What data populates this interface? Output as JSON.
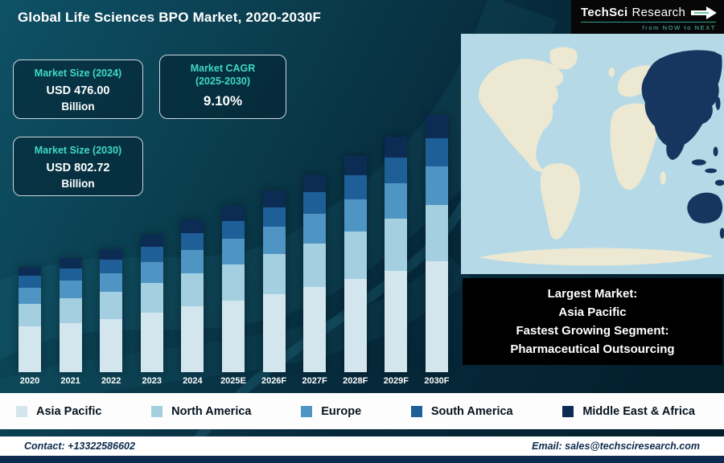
{
  "header": {
    "title": "Global Life Sciences BPO Market, 2020-2030F",
    "logo": {
      "name_part1": "TechSci",
      "name_part2": "Research",
      "tagline": "from NOW to NEXT"
    }
  },
  "stats": [
    {
      "label": "Market Size (2024)",
      "value": "USD 476.00",
      "unit": "Billion"
    },
    {
      "label": "Market CAGR",
      "sublabel": "(2025-2030)",
      "value": "9.10%"
    },
    {
      "label": "Market Size (2030)",
      "value": "USD 802.72",
      "unit": "Billion"
    }
  ],
  "chart_data": {
    "type": "bar",
    "stacked": true,
    "title": "Global Life Sciences BPO Market, 2020-2030F",
    "unit": "USD Billion",
    "categories": [
      "2020",
      "2021",
      "2022",
      "2023",
      "2024",
      "2025E",
      "2026F",
      "2027F",
      "2028F",
      "2029F",
      "2030F"
    ],
    "series": [
      {
        "name": "Asia Pacific",
        "color": "#d3e6ee",
        "values": [
          141.9,
          153.3,
          165.5,
          184.9,
          204.7,
          223.3,
          243.6,
          265.8,
          290.0,
          316.4,
          345.2
        ]
      },
      {
        "name": "North America",
        "color": "#a3cfe0",
        "values": [
          72.6,
          78.4,
          84.7,
          94.6,
          104.7,
          114.2,
          124.7,
          136.0,
          148.4,
          161.9,
          176.6
        ]
      },
      {
        "name": "Europe",
        "color": "#4e95c3",
        "values": [
          49.5,
          53.5,
          57.7,
          64.5,
          71.4,
          77.9,
          85.0,
          92.7,
          101.2,
          110.4,
          120.4
        ]
      },
      {
        "name": "South America",
        "color": "#1d5f96",
        "values": [
          36.3,
          39.2,
          42.3,
          47.3,
          52.4,
          57.1,
          62.3,
          68.0,
          74.2,
          80.9,
          88.3
        ]
      },
      {
        "name": "Middle East & Africa",
        "color": "#0c2c54",
        "values": [
          29.7,
          32.1,
          34.6,
          38.7,
          42.8,
          46.7,
          51.0,
          55.6,
          60.7,
          66.2,
          72.2
        ]
      }
    ],
    "totals": [
      330.0,
      356.4,
      384.9,
      430.0,
      476.0,
      519.3,
      566.6,
      618.1,
      674.4,
      735.7,
      802.72
    ],
    "ylim": [
      0,
      850
    ],
    "legend_position": "bottom"
  },
  "map": {
    "ocean_color": "#b5d9e6",
    "land_color": "#ece8d2",
    "highlight_color": "#16365f",
    "highlight_region": "Asia Pacific"
  },
  "highlight_box": {
    "lines": [
      "Largest Market:",
      "Asia Pacific",
      "Fastest Growing Segment:",
      "Pharmaceutical Outsourcing"
    ]
  },
  "footer": {
    "contact": "Contact: +13322586602",
    "email": "Email: sales@techsciresearch.com"
  }
}
